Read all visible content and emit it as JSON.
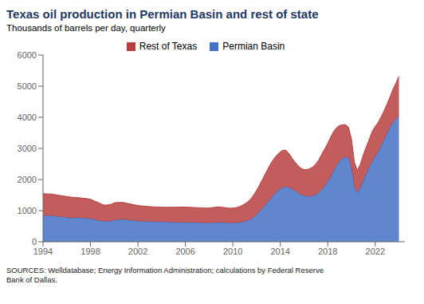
{
  "chart_data": {
    "type": "area",
    "title": "Texas oil production in Permian Basin and rest of state",
    "subtitle": "Thousands of barrels per day, quarterly",
    "annotations": [
      "SOURCES: Welldatabase; Energy Information Administration; calculations by Federal Reserve\nBank of Dallas."
    ],
    "stacked": true,
    "grid": false,
    "legend": "top",
    "xlim": [
      1994,
      2024.5
    ],
    "ylim": [
      0,
      6000
    ],
    "yticks": [
      0,
      1000,
      2000,
      3000,
      4000,
      5000,
      6000
    ],
    "xticks": [
      1994,
      1998,
      2002,
      2006,
      2010,
      2014,
      2018,
      2022
    ],
    "x": [
      1994.0,
      1994.25,
      1994.5,
      1994.75,
      1995.0,
      1995.25,
      1995.5,
      1995.75,
      1996.0,
      1996.25,
      1996.5,
      1996.75,
      1997.0,
      1997.25,
      1997.5,
      1997.75,
      1998.0,
      1998.25,
      1998.5,
      1998.75,
      1999.0,
      1999.25,
      1999.5,
      1999.75,
      2000.0,
      2000.25,
      2000.5,
      2000.75,
      2001.0,
      2001.25,
      2001.5,
      2001.75,
      2002.0,
      2002.25,
      2002.5,
      2002.75,
      2003.0,
      2003.25,
      2003.5,
      2003.75,
      2004.0,
      2004.25,
      2004.5,
      2004.75,
      2005.0,
      2005.25,
      2005.5,
      2005.75,
      2006.0,
      2006.25,
      2006.5,
      2006.75,
      2007.0,
      2007.25,
      2007.5,
      2007.75,
      2008.0,
      2008.25,
      2008.5,
      2008.75,
      2009.0,
      2009.25,
      2009.5,
      2009.75,
      2010.0,
      2010.25,
      2010.5,
      2010.75,
      2011.0,
      2011.25,
      2011.5,
      2011.75,
      2012.0,
      2012.25,
      2012.5,
      2012.75,
      2013.0,
      2013.25,
      2013.5,
      2013.75,
      2014.0,
      2014.25,
      2014.5,
      2014.75,
      2015.0,
      2015.25,
      2015.5,
      2015.75,
      2016.0,
      2016.25,
      2016.5,
      2016.75,
      2017.0,
      2017.25,
      2017.5,
      2017.75,
      2018.0,
      2018.25,
      2018.5,
      2018.75,
      2019.0,
      2019.25,
      2019.5,
      2019.75,
      2020.0,
      2020.25,
      2020.5,
      2020.75,
      2021.0,
      2021.25,
      2021.5,
      2021.75,
      2022.0,
      2022.25,
      2022.5,
      2022.75,
      2023.0,
      2023.25,
      2023.5,
      2023.75,
      2024.0
    ],
    "series": [
      {
        "name": "Permian Basin",
        "color": "#4472c4",
        "values": [
          830,
          835,
          840,
          840,
          825,
          815,
          805,
          795,
          785,
          778,
          772,
          770,
          768,
          762,
          758,
          752,
          742,
          722,
          702,
          682,
          662,
          652,
          660,
          668,
          698,
          708,
          712,
          718,
          708,
          698,
          688,
          678,
          668,
          663,
          658,
          653,
          648,
          645,
          642,
          640,
          638,
          635,
          632,
          630,
          628,
          625,
          623,
          621,
          619,
          617,
          615,
          613,
          611,
          609,
          607,
          605,
          606,
          610,
          614,
          618,
          618,
          614,
          610,
          607,
          604,
          607,
          614,
          628,
          648,
          678,
          718,
          788,
          868,
          968,
          1068,
          1178,
          1298,
          1418,
          1528,
          1618,
          1698,
          1748,
          1770,
          1740,
          1690,
          1640,
          1570,
          1510,
          1480,
          1460,
          1458,
          1478,
          1508,
          1578,
          1678,
          1798,
          1928,
          2078,
          2278,
          2458,
          2578,
          2678,
          2728,
          2698,
          2378,
          1778,
          1578,
          1728,
          1978,
          2178,
          2378,
          2578,
          2728,
          2878,
          3078,
          3278,
          3478,
          3678,
          3828,
          3928,
          4050
        ]
      },
      {
        "name": "Rest of Texas",
        "color": "#b94040",
        "values": [
          720,
          705,
          695,
          695,
          690,
          682,
          678,
          672,
          668,
          662,
          658,
          652,
          648,
          642,
          638,
          632,
          622,
          602,
          582,
          562,
          535,
          525,
          528,
          535,
          550,
          555,
          550,
          545,
          535,
          525,
          515,
          505,
          498,
          492,
          488,
          484,
          480,
          478,
          476,
          474,
          474,
          474,
          476,
          478,
          482,
          486,
          490,
          494,
          495,
          493,
          490,
          487,
          485,
          483,
          480,
          478,
          480,
          488,
          496,
          504,
          496,
          487,
          478,
          473,
          477,
          487,
          506,
          536,
          566,
          604,
          652,
          712,
          782,
          860,
          940,
          1012,
          1078,
          1128,
          1158,
          1178,
          1195,
          1195,
          1168,
          1082,
          990,
          918,
          870,
          848,
          842,
          862,
          892,
          930,
          990,
          1058,
          1138,
          1190,
          1238,
          1290,
          1268,
          1208,
          1158,
          1082,
          1032,
          982,
          918,
          768,
          718,
          768,
          820,
          870,
          918,
          968,
          978,
          958,
          938,
          930,
          950,
          978,
          1078,
          1170,
          1270
        ]
      }
    ]
  }
}
